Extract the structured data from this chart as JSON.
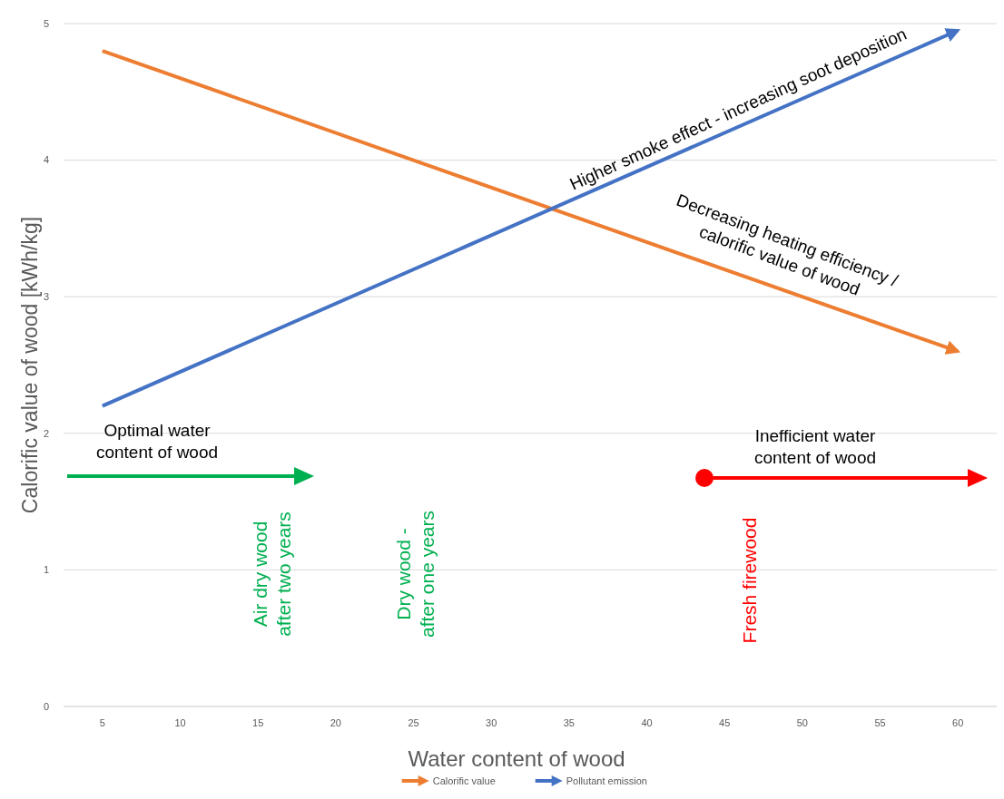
{
  "chart_data": {
    "type": "line",
    "xlabel": "Water content of wood",
    "ylabel": "Calorific value of wood [kWh/kg]",
    "x": [
      5,
      60
    ],
    "xlim": [
      2.5,
      62.5
    ],
    "xticks": [
      5,
      10,
      15,
      20,
      25,
      30,
      35,
      40,
      45,
      50,
      55,
      60
    ],
    "ylim": [
      0,
      5
    ],
    "yticks": [
      0,
      1,
      2,
      3,
      4,
      5
    ],
    "grid": "y",
    "legend": "bottom",
    "marker": "none",
    "line_style": "solid",
    "series": [
      {
        "name": "Calorific value",
        "color": "#ed7d31",
        "values": [
          4.8,
          2.6
        ]
      },
      {
        "name": "Pollutant emission",
        "color": "#4472c4",
        "values": [
          2.2,
          4.95
        ]
      }
    ],
    "annotations": [
      "Optimal water\ncontent of wood",
      "Inefficient water\ncontent of wood",
      "Air dry wood\nafter two years",
      "Dry wood -\nafter one years",
      "Fresh firewood",
      "Higher smoke effect - increasing soot deposition",
      "Decreasing heating efficiency /\ncalorific value of wood"
    ]
  }
}
